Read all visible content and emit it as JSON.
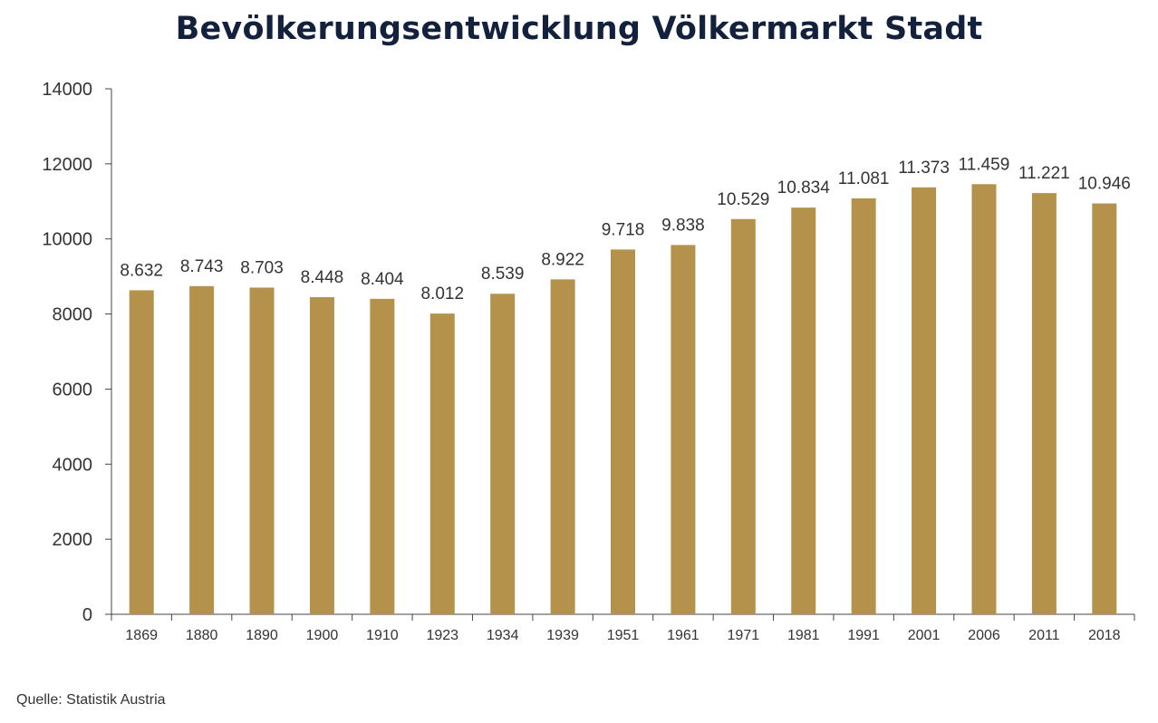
{
  "title": "Bevölkerungsentwicklung Völkermarkt Stadt",
  "source": "Quelle: Statistik Austria",
  "colors": {
    "bar": "#b5924b",
    "title": "#14213d",
    "axis": "#444444",
    "text": "#333333"
  },
  "chart_data": {
    "type": "bar",
    "title": "Bevölkerungsentwicklung Völkermarkt Stadt",
    "xlabel": "",
    "ylabel": "",
    "ylim": [
      0,
      14000
    ],
    "yticks": [
      0,
      2000,
      4000,
      6000,
      8000,
      10000,
      12000,
      14000
    ],
    "grid": false,
    "legend": "none",
    "categories": [
      "1869",
      "1880",
      "1890",
      "1900",
      "1910",
      "1923",
      "1934",
      "1939",
      "1951",
      "1961",
      "1971",
      "1981",
      "1991",
      "2001",
      "2006",
      "2011",
      "2018"
    ],
    "values": [
      8632,
      8743,
      8703,
      8448,
      8404,
      8012,
      8539,
      8922,
      9718,
      9838,
      10529,
      10834,
      11081,
      11373,
      11459,
      11221,
      10946
    ],
    "data_labels": [
      "8.632",
      "8.743",
      "8.703",
      "8.448",
      "8.404",
      "8.012",
      "8.539",
      "8.922",
      "9.718",
      "9.838",
      "10.529",
      "10.834",
      "11.081",
      "11.373",
      "11.459",
      "11.221",
      "10.946"
    ]
  }
}
